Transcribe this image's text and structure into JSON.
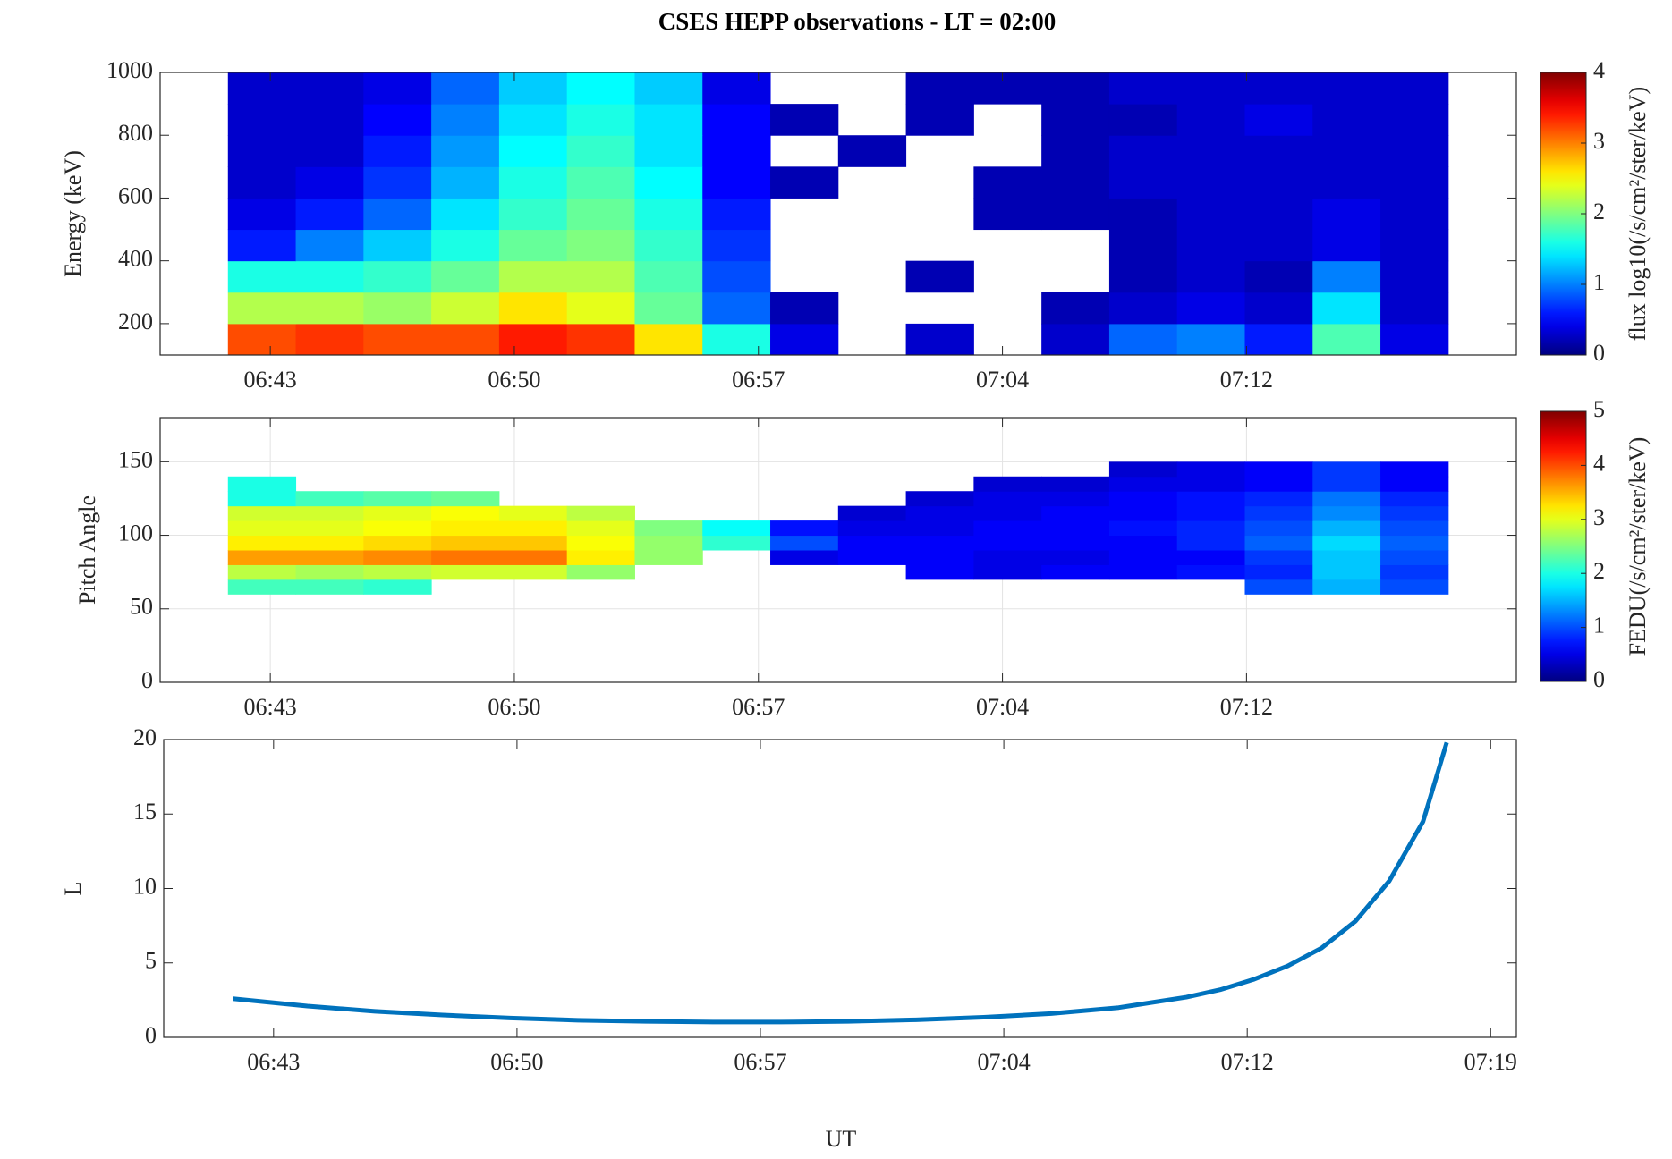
{
  "chart_data": [
    {
      "type": "heatmap",
      "title": "CSES HEPP observations - LT = 02:00",
      "ylabel": "Energy (keV)",
      "grid": false,
      "colormap": "jet",
      "xlim": [
        39.75,
        79.76
      ],
      "xticks": [
        {
          "value": 43.0,
          "label": "06:43"
        },
        {
          "value": 50.2,
          "label": "06:50"
        },
        {
          "value": 57.4,
          "label": "06:57"
        },
        {
          "value": 64.6,
          "label": "07:04"
        },
        {
          "value": 71.8,
          "label": "07:12"
        }
      ],
      "ylim": [
        100,
        1000
      ],
      "yticks": [
        200,
        400,
        600,
        800,
        1000
      ],
      "x": [
        42.75,
        44.75,
        46.75,
        48.75,
        50.75,
        52.75,
        54.75,
        56.75,
        58.75,
        60.75,
        62.75,
        64.75,
        66.75,
        68.75,
        70.75,
        72.75,
        74.75,
        76.75
      ],
      "y": [
        150,
        250,
        350,
        450,
        550,
        650,
        750,
        850,
        950
      ],
      "z": [
        [
          3.2,
          3.3,
          3.2,
          3.2,
          3.4,
          3.3,
          2.6,
          1.6,
          0.4,
          null,
          0.3,
          null,
          0.3,
          0.9,
          1.0,
          0.6,
          1.8,
          0.4
        ],
        [
          2.2,
          2.2,
          2.1,
          2.3,
          2.6,
          2.4,
          1.9,
          0.9,
          0.2,
          null,
          null,
          null,
          0.2,
          0.3,
          0.4,
          0.3,
          1.4,
          0.3
        ],
        [
          1.6,
          1.6,
          1.7,
          1.9,
          2.2,
          2.2,
          1.8,
          0.8,
          null,
          null,
          0.2,
          null,
          null,
          0.2,
          0.3,
          0.2,
          1.0,
          0.3
        ],
        [
          0.6,
          1.0,
          1.3,
          1.6,
          1.9,
          2.0,
          1.7,
          0.7,
          null,
          null,
          null,
          null,
          null,
          0.2,
          0.3,
          0.3,
          0.4,
          0.3
        ],
        [
          0.4,
          0.6,
          0.9,
          1.4,
          1.7,
          1.9,
          1.6,
          0.6,
          null,
          null,
          null,
          0.2,
          0.2,
          0.2,
          0.3,
          0.3,
          0.4,
          0.3
        ],
        [
          0.3,
          0.4,
          0.7,
          1.2,
          1.6,
          1.8,
          1.5,
          0.5,
          0.2,
          null,
          null,
          0.2,
          0.2,
          0.3,
          0.3,
          0.3,
          0.3,
          0.3
        ],
        [
          0.3,
          0.3,
          0.6,
          1.1,
          1.5,
          1.7,
          1.4,
          0.5,
          null,
          0.2,
          null,
          null,
          0.2,
          0.3,
          0.3,
          0.3,
          0.3,
          0.3
        ],
        [
          0.3,
          0.3,
          0.5,
          1.0,
          1.4,
          1.6,
          1.4,
          0.5,
          0.2,
          null,
          0.2,
          null,
          0.2,
          0.2,
          0.3,
          0.4,
          0.3,
          0.3
        ],
        [
          0.3,
          0.3,
          0.4,
          0.9,
          1.3,
          1.5,
          1.3,
          0.4,
          null,
          null,
          0.2,
          0.2,
          0.2,
          0.3,
          0.3,
          0.3,
          0.3,
          0.3
        ]
      ],
      "colorbar": {
        "label": "flux log10(/s/cm²/ster/keV)",
        "lim": [
          0,
          4
        ],
        "ticks": [
          0,
          1,
          2,
          3,
          4
        ]
      }
    },
    {
      "type": "heatmap",
      "ylabel": "Pitch Angle",
      "grid": true,
      "colormap": "jet",
      "xlim": [
        39.75,
        79.76
      ],
      "xticks": [
        {
          "value": 43.0,
          "label": "06:43"
        },
        {
          "value": 50.2,
          "label": "06:50"
        },
        {
          "value": 57.4,
          "label": "06:57"
        },
        {
          "value": 64.6,
          "label": "07:04"
        },
        {
          "value": 71.8,
          "label": "07:12"
        }
      ],
      "ylim": [
        0,
        180
      ],
      "yticks": [
        0,
        50,
        100,
        150
      ],
      "x": [
        42.75,
        44.75,
        46.75,
        48.75,
        50.75,
        52.75,
        54.75,
        56.75,
        58.75,
        60.75,
        62.75,
        64.75,
        66.75,
        68.75,
        70.75,
        72.75,
        74.75,
        76.75
      ],
      "y": [
        65,
        75,
        85,
        95,
        105,
        115,
        125,
        135,
        145
      ],
      "z": [
        [
          2.2,
          2.2,
          2.1,
          null,
          null,
          null,
          null,
          null,
          null,
          null,
          null,
          null,
          null,
          null,
          null,
          1.0,
          1.5,
          1.0
        ],
        [
          2.8,
          2.7,
          2.8,
          2.9,
          2.9,
          2.6,
          null,
          null,
          null,
          null,
          0.6,
          0.5,
          0.6,
          0.6,
          0.7,
          0.8,
          1.6,
          0.9
        ],
        [
          3.6,
          3.6,
          3.7,
          3.8,
          3.8,
          3.2,
          2.6,
          null,
          0.5,
          0.6,
          0.6,
          0.5,
          0.5,
          0.6,
          0.6,
          0.9,
          1.6,
          1.0
        ],
        [
          3.2,
          3.2,
          3.3,
          3.4,
          3.4,
          3.1,
          2.6,
          2.1,
          1.0,
          0.6,
          0.6,
          0.6,
          0.6,
          0.6,
          0.8,
          1.1,
          1.7,
          1.1
        ],
        [
          3.0,
          3.0,
          3.1,
          3.2,
          3.2,
          3.0,
          2.5,
          1.9,
          0.7,
          0.5,
          0.5,
          0.6,
          0.6,
          0.7,
          0.8,
          1.0,
          1.5,
          1.0
        ],
        [
          2.9,
          2.9,
          3.0,
          3.1,
          3.0,
          2.8,
          null,
          null,
          null,
          0.4,
          0.5,
          0.5,
          0.6,
          0.6,
          0.7,
          0.9,
          1.3,
          0.9
        ],
        [
          2.0,
          2.2,
          2.3,
          2.4,
          null,
          null,
          null,
          null,
          null,
          null,
          0.4,
          0.5,
          0.5,
          0.6,
          0.7,
          0.8,
          1.2,
          0.8
        ],
        [
          2.0,
          null,
          null,
          null,
          null,
          null,
          null,
          null,
          null,
          null,
          null,
          0.4,
          0.4,
          0.5,
          0.5,
          0.6,
          0.9,
          0.6
        ],
        [
          null,
          null,
          null,
          null,
          null,
          null,
          null,
          null,
          null,
          null,
          null,
          null,
          null,
          0.4,
          0.5,
          0.6,
          0.9,
          0.6
        ]
      ],
      "colorbar": {
        "label": "FEDU(/s/cm²/ster/keV)",
        "lim": [
          0,
          5
        ],
        "ticks": [
          0,
          1,
          2,
          3,
          4,
          5
        ]
      }
    },
    {
      "type": "line",
      "ylabel": "L",
      "xlabel": "UT",
      "grid": false,
      "color": "#0072bd",
      "xlim": [
        39.75,
        79.76
      ],
      "xticks": [
        {
          "value": 43.0,
          "label": "06:43"
        },
        {
          "value": 50.2,
          "label": "06:50"
        },
        {
          "value": 57.4,
          "label": "06:57"
        },
        {
          "value": 64.6,
          "label": "07:04"
        },
        {
          "value": 71.8,
          "label": "07:12"
        },
        {
          "value": 79.0,
          "label": "07:19"
        }
      ],
      "ylim": [
        0,
        20
      ],
      "yticks": [
        0,
        5,
        10,
        15,
        20
      ],
      "x": [
        41.8,
        44,
        46,
        48,
        50,
        52,
        54,
        56,
        58,
        60,
        62,
        64,
        66,
        68,
        70,
        71,
        72,
        73,
        74,
        75,
        76,
        77,
        77.7
      ],
      "values": [
        2.6,
        2.1,
        1.75,
        1.5,
        1.3,
        1.15,
        1.07,
        1.03,
        1.03,
        1.07,
        1.18,
        1.35,
        1.6,
        2.0,
        2.7,
        3.2,
        3.9,
        4.8,
        6.0,
        7.8,
        10.5,
        14.5,
        19.8
      ]
    }
  ]
}
